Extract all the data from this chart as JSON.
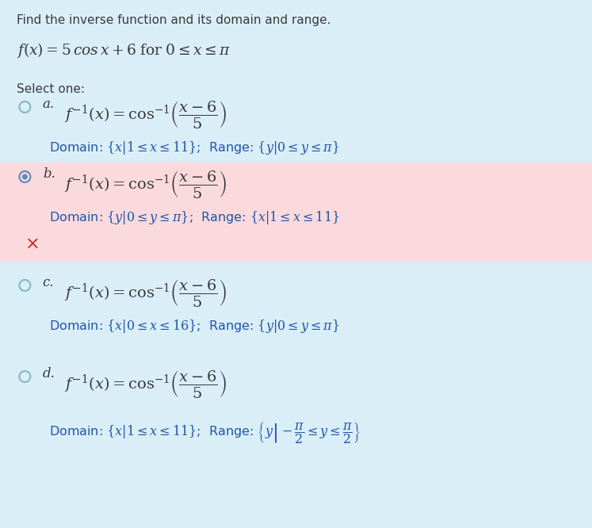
{
  "background_color": "#daeef8",
  "title_text": "Find the inverse function and its domain and range.",
  "problem_line1": "$f(x) = 5\\,cos\\,x + 6\\;\\mathrm{for}\\;0 \\leq x \\leq \\pi$",
  "select_text": "Select one:",
  "options": [
    {
      "label": "a.",
      "formula": "$f^{-1}(x) = \\cos^{-1}\\!\\left(\\dfrac{x-6}{5}\\right)$",
      "domain_range": "Domain: $\\{x|1 \\leq x \\leq 11\\}$;  Range: $\\{y|0 \\leq y \\leq \\pi\\}$",
      "selected": false,
      "incorrect": false,
      "bg": null
    },
    {
      "label": "b.",
      "formula": "$f^{-1}(x) = \\cos^{-1}\\!\\left(\\dfrac{x-6}{5}\\right)$",
      "domain_range": "Domain: $\\{y|0 \\leq y \\leq \\pi\\}$;  Range: $\\{x|1 \\leq x \\leq 11\\}$",
      "selected": true,
      "incorrect": true,
      "bg": "#fadadd"
    },
    {
      "label": "c.",
      "formula": "$f^{-1}(x) = \\cos^{-1}\\!\\left(\\dfrac{x-6}{5}\\right)$",
      "domain_range": "Domain: $\\{x|0 \\leq x \\leq 16\\}$;  Range: $\\{y|0 \\leq y \\leq \\pi\\}$",
      "selected": false,
      "incorrect": false,
      "bg": null
    },
    {
      "label": "d.",
      "formula": "$f^{-1}(x) = \\cos^{-1}\\!\\left(\\dfrac{x-6}{5}\\right)$",
      "domain_range": "Domain: $\\{x|1 \\leq x \\leq 11\\}$;  Range: $\\left\\{y\\left|-\\dfrac{\\pi}{2} \\leq y \\leq \\dfrac{\\pi}{2}\\right.\\right\\}$",
      "selected": false,
      "incorrect": false,
      "bg": null
    }
  ],
  "radio_color_normal": "#8ab4c8",
  "radio_color_selected": "#5b8db8",
  "incorrect_mark": "\\times",
  "incorrect_color": "#cc2222",
  "text_color": "#3a3a3a",
  "domain_color": "#2255aa",
  "label_color": "#3a3a3a",
  "figwidth": 7.47,
  "figheight": 6.66,
  "dpi": 100
}
